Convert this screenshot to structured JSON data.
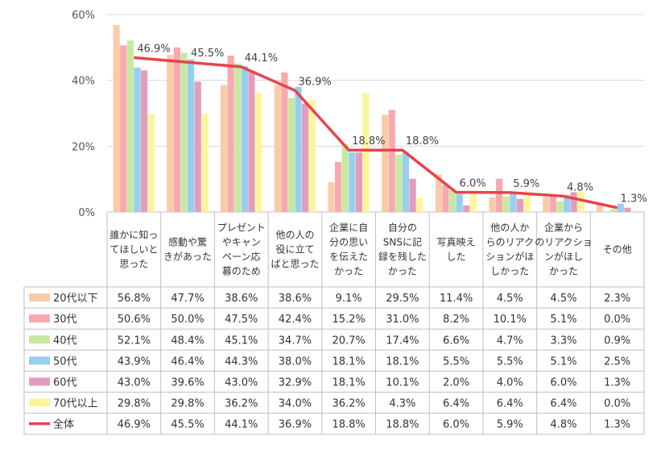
{
  "chart_data": {
    "type": "bar",
    "title": "",
    "xlabel": "",
    "ylabel": "",
    "ylim": [
      0,
      60
    ],
    "y_ticks": [
      "0%",
      "20%",
      "40%",
      "60%"
    ],
    "grid": true,
    "legend_placement": "table-left",
    "categories": [
      [
        "誰かに知っ",
        "てほしいと",
        "思った"
      ],
      [
        "感動や驚",
        "きがあった"
      ],
      [
        "プレゼント",
        "やキャン",
        "ペーン応",
        "募のため"
      ],
      [
        "他の人の",
        "役に立て",
        "ばと思った"
      ],
      [
        "企業に自",
        "分の思い",
        "を伝えた",
        "かった"
      ],
      [
        "自分の",
        "SNSに記",
        "録を残した",
        "かった"
      ],
      [
        "写真映え",
        "した"
      ],
      [
        "他の人か",
        "らのリアク",
        "ションがほ",
        "しかった"
      ],
      [
        "企業から",
        "のリアクショ",
        "ンがほし",
        "かった"
      ],
      [
        "その他"
      ]
    ],
    "series": [
      {
        "name": "20代以下",
        "color": "#FBCBA9",
        "values": [
          56.8,
          47.7,
          38.6,
          38.6,
          9.1,
          29.5,
          11.4,
          4.5,
          4.5,
          2.3
        ],
        "labels": [
          "56.8%",
          "47.7%",
          "38.6%",
          "38.6%",
          "9.1%",
          "29.5%",
          "11.4%",
          "4.5%",
          "4.5%",
          "2.3%"
        ]
      },
      {
        "name": "30代",
        "color": "#F8A9AF",
        "values": [
          50.6,
          50.0,
          47.5,
          42.4,
          15.2,
          31.0,
          8.2,
          10.1,
          5.1,
          0.0
        ],
        "labels": [
          "50.6%",
          "50.0%",
          "47.5%",
          "42.4%",
          "15.2%",
          "31.0%",
          "8.2%",
          "10.1%",
          "5.1%",
          "0.0%"
        ]
      },
      {
        "name": "40代",
        "color": "#C6E9A1",
        "values": [
          52.1,
          48.4,
          45.1,
          34.7,
          20.7,
          17.4,
          6.6,
          4.7,
          3.3,
          0.9
        ],
        "labels": [
          "52.1%",
          "48.4%",
          "45.1%",
          "34.7%",
          "20.7%",
          "17.4%",
          "6.6%",
          "4.7%",
          "3.3%",
          "0.9%"
        ]
      },
      {
        "name": "50代",
        "color": "#97CFEF",
        "values": [
          43.9,
          46.4,
          44.3,
          38.0,
          18.1,
          18.1,
          5.5,
          5.5,
          5.1,
          2.5
        ],
        "labels": [
          "43.9%",
          "46.4%",
          "44.3%",
          "38.0%",
          "18.1%",
          "18.1%",
          "5.5%",
          "5.5%",
          "5.1%",
          "2.5%"
        ]
      },
      {
        "name": "60代",
        "color": "#E29DBD",
        "values": [
          43.0,
          39.6,
          43.0,
          32.9,
          18.1,
          10.1,
          2.0,
          4.0,
          6.0,
          1.3
        ],
        "labels": [
          "43.0%",
          "39.6%",
          "43.0%",
          "32.9%",
          "18.1%",
          "10.1%",
          "2.0%",
          "4.0%",
          "6.0%",
          "1.3%"
        ]
      },
      {
        "name": "70代以上",
        "color": "#FDF59C",
        "values": [
          29.8,
          29.8,
          36.2,
          34.0,
          36.2,
          4.3,
          6.4,
          6.4,
          6.4,
          0.0
        ],
        "labels": [
          "29.8%",
          "29.8%",
          "36.2%",
          "34.0%",
          "36.2%",
          "4.3%",
          "6.4%",
          "6.4%",
          "6.4%",
          "0.0%"
        ]
      }
    ],
    "total": {
      "name": "全体",
      "type": "line",
      "color": "#E8434B",
      "values": [
        46.9,
        45.5,
        44.1,
        36.9,
        18.8,
        18.8,
        6.0,
        5.9,
        4.8,
        1.3
      ],
      "labels": [
        "46.9%",
        "45.5%",
        "44.1%",
        "36.9%",
        "18.8%",
        "18.8%",
        "6.0%",
        "5.9%",
        "4.8%",
        "1.3%"
      ]
    }
  }
}
